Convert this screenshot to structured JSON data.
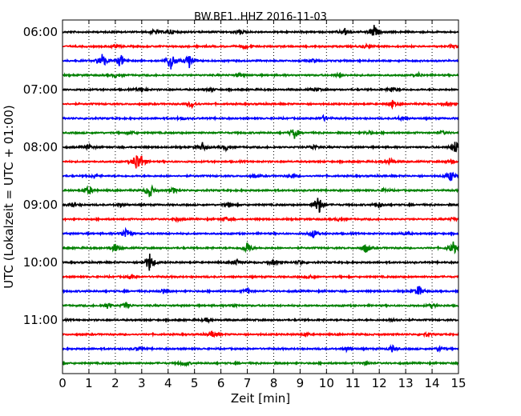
{
  "chart_data": {
    "type": "line",
    "title": "BW.BE1..HHZ 2016-11-03",
    "xlabel": "Zeit  [min]",
    "ylabel": "UTC (Lokalzeit = UTC + 01:00)",
    "xlim": [
      0,
      15
    ],
    "x_ticks": [
      0,
      1,
      2,
      3,
      4,
      5,
      6,
      7,
      8,
      9,
      10,
      11,
      12,
      13,
      14,
      15
    ],
    "grid_x": "dotted",
    "y_tick_labels": [
      "06:00",
      "07:00",
      "08:00",
      "09:00",
      "10:00",
      "11:00"
    ],
    "trace_interval_min": 15,
    "trace_colors": [
      "#000000",
      "#ff0000",
      "#0000ff",
      "#008000"
    ],
    "series": [
      {
        "start": "06:00",
        "color": "#000000",
        "events": [
          [
            3.5,
            0.3
          ],
          [
            4.1,
            0.3
          ],
          [
            6.7,
            0.3
          ],
          [
            10.7,
            0.4
          ],
          [
            11.8,
            0.8
          ]
        ]
      },
      {
        "start": "06:15",
        "color": "#ff0000",
        "events": [
          [
            2.0,
            0.2
          ],
          [
            6.9,
            0.2
          ],
          [
            11.5,
            0.2
          ],
          [
            14.8,
            0.2
          ]
        ]
      },
      {
        "start": "06:30",
        "color": "#0000ff",
        "events": [
          [
            1.5,
            1.0
          ],
          [
            2.2,
            0.8
          ],
          [
            4.1,
            1.2
          ],
          [
            4.8,
            0.9
          ],
          [
            9.5,
            0.2
          ]
        ]
      },
      {
        "start": "06:45",
        "color": "#008000",
        "events": [
          [
            2.0,
            0.2
          ],
          [
            6.7,
            0.2
          ],
          [
            10.5,
            0.2
          ],
          [
            13.5,
            0.2
          ]
        ]
      },
      {
        "start": "07:00",
        "color": "#000000",
        "events": [
          [
            3.0,
            0.3
          ],
          [
            5.6,
            0.2
          ],
          [
            9.6,
            0.2
          ],
          [
            12.5,
            0.3
          ]
        ]
      },
      {
        "start": "07:15",
        "color": "#ff0000",
        "events": [
          [
            4.9,
            0.4
          ],
          [
            12.5,
            0.4
          ],
          [
            14.6,
            0.2
          ]
        ]
      },
      {
        "start": "07:30",
        "color": "#0000ff",
        "events": [
          [
            4.5,
            0.2
          ],
          [
            9.9,
            0.3
          ],
          [
            12.8,
            0.2
          ]
        ]
      },
      {
        "start": "07:45",
        "color": "#008000",
        "events": [
          [
            2.6,
            0.2
          ],
          [
            8.8,
            0.7
          ],
          [
            11.6,
            0.2
          ],
          [
            14.4,
            0.2
          ]
        ]
      },
      {
        "start": "08:00",
        "color": "#000000",
        "events": [
          [
            1.0,
            0.3
          ],
          [
            5.3,
            0.5
          ],
          [
            6.2,
            0.3
          ],
          [
            9.5,
            0.3
          ],
          [
            14.9,
            0.8
          ]
        ]
      },
      {
        "start": "08:15",
        "color": "#ff0000",
        "events": [
          [
            2.8,
            1.0
          ],
          [
            3.0,
            0.5
          ],
          [
            12.4,
            0.4
          ],
          [
            14.7,
            0.2
          ]
        ]
      },
      {
        "start": "08:30",
        "color": "#0000ff",
        "events": [
          [
            1.2,
            0.2
          ],
          [
            7.3,
            0.2
          ],
          [
            8.7,
            0.2
          ],
          [
            14.7,
            0.6
          ]
        ]
      },
      {
        "start": "08:45",
        "color": "#008000",
        "events": [
          [
            1.0,
            0.5
          ],
          [
            3.3,
            0.9
          ],
          [
            4.2,
            0.3
          ],
          [
            12.2,
            0.2
          ]
        ]
      },
      {
        "start": "09:00",
        "color": "#000000",
        "events": [
          [
            0.4,
            0.3
          ],
          [
            2.2,
            0.2
          ],
          [
            6.3,
            0.3
          ],
          [
            9.7,
            1.2
          ],
          [
            12.0,
            0.3
          ]
        ]
      },
      {
        "start": "09:15",
        "color": "#ff0000",
        "events": [
          [
            4.3,
            0.2
          ],
          [
            6.2,
            0.2
          ],
          [
            10.5,
            0.2
          ],
          [
            14.8,
            0.2
          ]
        ]
      },
      {
        "start": "09:30",
        "color": "#0000ff",
        "events": [
          [
            2.4,
            0.7
          ],
          [
            9.5,
            0.5
          ],
          [
            13.0,
            0.2
          ]
        ]
      },
      {
        "start": "09:45",
        "color": "#008000",
        "events": [
          [
            2.0,
            0.5
          ],
          [
            7.0,
            0.7
          ],
          [
            11.5,
            0.6
          ],
          [
            14.8,
            0.8
          ]
        ]
      },
      {
        "start": "10:00",
        "color": "#000000",
        "events": [
          [
            3.3,
            1.1
          ],
          [
            6.6,
            0.3
          ],
          [
            8.0,
            0.3
          ],
          [
            9.0,
            0.2
          ]
        ]
      },
      {
        "start": "10:15",
        "color": "#ff0000",
        "events": [
          [
            2.6,
            0.2
          ],
          [
            9.4,
            0.2
          ]
        ]
      },
      {
        "start": "10:30",
        "color": "#0000ff",
        "events": [
          [
            3.8,
            0.3
          ],
          [
            7.0,
            0.3
          ],
          [
            13.5,
            0.7
          ]
        ]
      },
      {
        "start": "10:45",
        "color": "#008000",
        "events": [
          [
            1.7,
            0.3
          ],
          [
            2.4,
            0.3
          ],
          [
            6.5,
            0.2
          ],
          [
            14.0,
            0.2
          ]
        ]
      },
      {
        "start": "11:00",
        "color": "#000000",
        "events": [
          [
            5.5,
            0.2
          ],
          [
            12.6,
            0.2
          ]
        ]
      },
      {
        "start": "11:15",
        "color": "#ff0000",
        "events": [
          [
            5.7,
            0.4
          ],
          [
            9.2,
            0.2
          ],
          [
            13.8,
            0.2
          ]
        ]
      },
      {
        "start": "11:30",
        "color": "#0000ff",
        "events": [
          [
            2.9,
            0.3
          ],
          [
            10.8,
            0.3
          ],
          [
            12.5,
            0.4
          ],
          [
            14.3,
            0.3
          ]
        ]
      },
      {
        "start": "11:45",
        "color": "#008000",
        "events": [
          [
            4.6,
            0.3
          ],
          [
            11.5,
            0.2
          ]
        ]
      }
    ]
  }
}
